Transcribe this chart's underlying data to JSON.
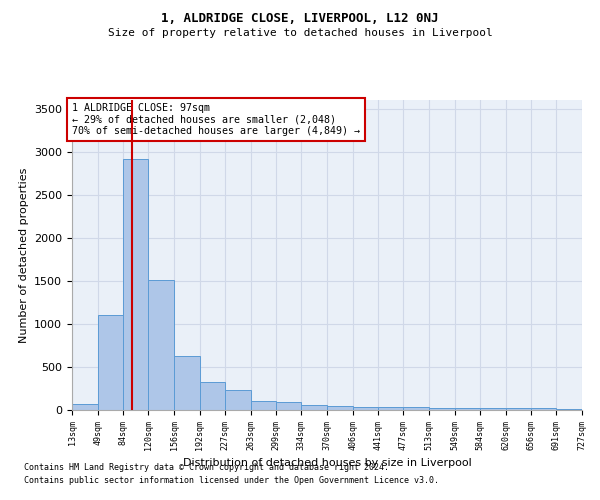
{
  "title1": "1, ALDRIDGE CLOSE, LIVERPOOL, L12 0NJ",
  "title2": "Size of property relative to detached houses in Liverpool",
  "xlabel": "Distribution of detached houses by size in Liverpool",
  "ylabel": "Number of detached properties",
  "footnote1": "Contains HM Land Registry data © Crown copyright and database right 2024.",
  "footnote2": "Contains public sector information licensed under the Open Government Licence v3.0.",
  "bar_edges": [
    13,
    49,
    84,
    120,
    156,
    192,
    227,
    263,
    299,
    334,
    370,
    406,
    441,
    477,
    513,
    549,
    584,
    620,
    656,
    691,
    727
  ],
  "bar_heights": [
    70,
    1100,
    2920,
    1510,
    630,
    320,
    230,
    100,
    95,
    60,
    50,
    40,
    35,
    30,
    28,
    25,
    22,
    20,
    18,
    15
  ],
  "bar_color": "#aec6e8",
  "bar_edge_color": "#5b9bd5",
  "grid_color": "#d0d8e8",
  "background_color": "#eaf0f8",
  "property_size": 97,
  "property_label": "1 ALDRIDGE CLOSE: 97sqm",
  "annotation_line1": "← 29% of detached houses are smaller (2,048)",
  "annotation_line2": "70% of semi-detached houses are larger (4,849) →",
  "vline_color": "#cc0000",
  "annotation_box_color": "#cc0000",
  "ylim": [
    0,
    3600
  ],
  "xlim_left": 13,
  "xlim_right": 727,
  "tick_labels": [
    "13sqm",
    "49sqm",
    "84sqm",
    "120sqm",
    "156sqm",
    "192sqm",
    "227sqm",
    "263sqm",
    "299sqm",
    "334sqm",
    "370sqm",
    "406sqm",
    "441sqm",
    "477sqm",
    "513sqm",
    "549sqm",
    "584sqm",
    "620sqm",
    "656sqm",
    "691sqm",
    "727sqm"
  ]
}
